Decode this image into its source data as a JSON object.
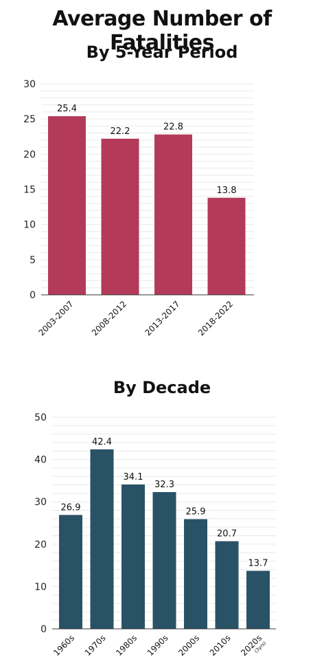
{
  "title": "Average Number of Fatalities",
  "chart_data": [
    {
      "type": "bar",
      "title": "By 5-Year Period",
      "categories": [
        "2003-2007",
        "2008-2012",
        "2013-2017",
        "2018-2022"
      ],
      "values": [
        25.4,
        22.2,
        22.8,
        13.8
      ],
      "value_labels": [
        "25.4",
        "22.2",
        "22.8",
        "13.8"
      ],
      "category_notes": [
        "",
        "",
        "",
        ""
      ],
      "ylim": [
        0,
        30
      ],
      "yticks": [
        0,
        5,
        10,
        15,
        20,
        25,
        30
      ],
      "grid": true,
      "color": "#b33a59"
    },
    {
      "type": "bar",
      "title": "By Decade",
      "categories": [
        "1960s",
        "1970s",
        "1980s",
        "1990s",
        "2000s",
        "2010s",
        "2020s"
      ],
      "values": [
        26.9,
        42.4,
        34.1,
        32.3,
        25.9,
        20.7,
        13.7
      ],
      "value_labels": [
        "26.9",
        "42.4",
        "34.1",
        "32.3",
        "25.9",
        "20.7",
        "13.7"
      ],
      "category_notes": [
        "",
        "",
        "",
        "",
        "",
        "",
        "(3yrs)"
      ],
      "ylim": [
        0,
        50
      ],
      "yticks": [
        0,
        10,
        20,
        30,
        40,
        50
      ],
      "grid": true,
      "color": "#2a5266"
    }
  ]
}
